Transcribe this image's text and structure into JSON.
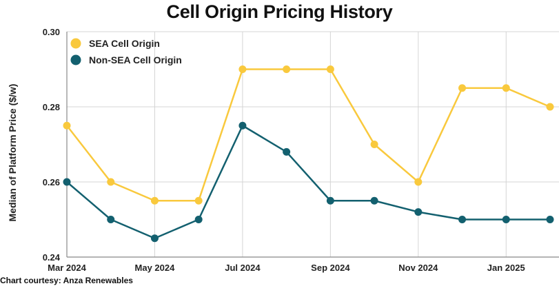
{
  "chart_data": {
    "type": "line",
    "title": "Cell Origin Pricing History",
    "ylabel": "Median of Platform Price ($/w)",
    "xlabel": "",
    "ylim": [
      0.24,
      0.3
    ],
    "y_ticks": [
      "0.24",
      "0.26",
      "0.28",
      "0.30"
    ],
    "x": [
      "Mar 2024",
      "Apr 2024",
      "May 2024",
      "Jun 2024",
      "Jul 2024",
      "Aug 2024",
      "Sep 2024",
      "Oct 2024",
      "Nov 2024",
      "Dec 2024",
      "Jan 2025",
      "Feb 2025"
    ],
    "x_tick_labels": [
      "Mar 2024",
      "May 2024",
      "Jul 2024",
      "Sep 2024",
      "Nov 2024",
      "Jan 2025"
    ],
    "series": [
      {
        "name": "SEA Cell Origin",
        "color": "#f9c93d",
        "values": [
          0.275,
          0.26,
          0.255,
          0.255,
          0.29,
          0.29,
          0.29,
          0.27,
          0.26,
          0.285,
          0.285,
          0.28
        ]
      },
      {
        "name": "Non-SEA Cell Origin",
        "color": "#13606f",
        "values": [
          0.26,
          0.25,
          0.245,
          0.25,
          0.275,
          0.268,
          0.255,
          0.255,
          0.252,
          0.25,
          0.25,
          0.25
        ]
      }
    ],
    "grid": true,
    "legend_position": "top-left"
  },
  "footer": {
    "credit": "Chart courtesy: Anza Renewables"
  }
}
